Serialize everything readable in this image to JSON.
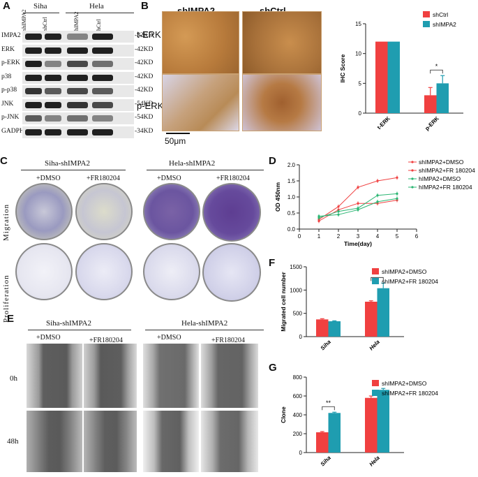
{
  "panels": {
    "A": {
      "label": "A",
      "groups": [
        "Siha",
        "Hela"
      ],
      "lanes": [
        "shIMPA2",
        "shCtrl",
        "hIMPA2",
        "hCtrl"
      ],
      "rows": [
        "IMPA2",
        "ERK",
        "p-ERK",
        "p38",
        "p-p38",
        "JNK",
        "p-JNK",
        "GADPH"
      ],
      "sizes": [
        "-32KD",
        "-42KD",
        "-42KD",
        "-42KD",
        "-42KD",
        "-54KD",
        "-54KD",
        "-34KD"
      ]
    },
    "B": {
      "label": "B",
      "col_titles": [
        "shIMPA2",
        "shCtrl"
      ],
      "row_titles": [
        "t-ERK",
        "p-ERK"
      ],
      "scalebar": "50μm"
    },
    "C": {
      "label": "C",
      "group_titles": [
        "Siha-shIMPA2",
        "Hela-shIMPA2"
      ],
      "treatments": [
        "+DMSO",
        "+FR180204",
        "+DMSO",
        "+FR180204"
      ],
      "row_titles": [
        "Migration",
        "Proliferation"
      ]
    },
    "D": {
      "label": "D"
    },
    "E": {
      "label": "E",
      "group_titles": [
        "Siha-shIMPA2",
        "Hela-shIMPA2"
      ],
      "treatments": [
        "+DMSO",
        "+FR180204",
        "+DMSO",
        "+FR180204"
      ],
      "row_titles": [
        "0h",
        "48h"
      ]
    },
    "F": {
      "label": "F"
    },
    "G": {
      "label": "G"
    }
  },
  "colors": {
    "red": "#f04040",
    "teal": "#1f9db0",
    "green": "#2bb673"
  },
  "chart_data": [
    {
      "id": "B",
      "type": "bar",
      "categories": [
        "t-ERK",
        "p-ERK"
      ],
      "series": [
        {
          "name": "shCtrl",
          "values": [
            12,
            3.0
          ],
          "errors": [
            0,
            1.3
          ]
        },
        {
          "name": "shIMPA2",
          "values": [
            12,
            5.0
          ],
          "errors": [
            0,
            1.3
          ]
        }
      ],
      "ylabel": "IHC Score",
      "ylim": [
        0,
        15
      ],
      "yticks": [
        0,
        5,
        10,
        15
      ],
      "significance": [
        {
          "category": "p-ERK",
          "mark": "*"
        }
      ],
      "legend": "top-right"
    },
    {
      "id": "D",
      "type": "line",
      "x": [
        1,
        2,
        3,
        4,
        5
      ],
      "series": [
        {
          "name": "shIMPA2+DMSO",
          "values": [
            0.3,
            0.7,
            1.3,
            1.5,
            1.6
          ]
        },
        {
          "name": "shIMPA2+FR 180204",
          "values": [
            0.25,
            0.6,
            0.8,
            0.8,
            0.9
          ]
        },
        {
          "name": "hIMPA2+DMSO",
          "values": [
            0.35,
            0.55,
            0.65,
            1.05,
            1.1
          ]
        },
        {
          "name": "hIMPA2+FR 180204",
          "values": [
            0.4,
            0.45,
            0.6,
            0.85,
            0.95
          ]
        }
      ],
      "xlabel": "Time(day)",
      "ylabel": "OD 450nm",
      "xlim": [
        0,
        6
      ],
      "ylim": [
        0.0,
        2.0
      ],
      "xticks": [
        0,
        1,
        2,
        3,
        4,
        5,
        6
      ],
      "yticks": [
        "0.0",
        "0.5",
        "1.0",
        "1.5",
        "2.0"
      ],
      "legend": "top-right"
    },
    {
      "id": "F",
      "type": "bar",
      "categories": [
        "Siha",
        "Hela"
      ],
      "series": [
        {
          "name": "shIMPA2+DMSO",
          "values": [
            370,
            750
          ],
          "errors": [
            15,
            20
          ]
        },
        {
          "name": "shIMPA2+FR 180204",
          "values": [
            330,
            1040
          ],
          "errors": [
            10,
            110
          ]
        }
      ],
      "ylabel": "Migrated cell number",
      "ylim": [
        0,
        1500
      ],
      "yticks": [
        0,
        500,
        1000,
        1500
      ],
      "significance": [
        {
          "category": "Hela",
          "mark": "*"
        }
      ],
      "legend": "top-right"
    },
    {
      "id": "G",
      "type": "bar",
      "categories": [
        "Siha",
        "Hela"
      ],
      "series": [
        {
          "name": "shIMPA2+DMSO",
          "values": [
            215,
            580
          ],
          "errors": [
            8,
            20
          ]
        },
        {
          "name": "shIMPA2+FR 180204",
          "values": [
            420,
            665
          ],
          "errors": [
            8,
            15
          ]
        }
      ],
      "ylabel": "Clone",
      "ylim": [
        0,
        800
      ],
      "yticks": [
        0,
        200,
        400,
        600,
        800
      ],
      "significance": [
        {
          "category": "Siha",
          "mark": "**"
        }
      ],
      "legend": "top-right"
    }
  ]
}
